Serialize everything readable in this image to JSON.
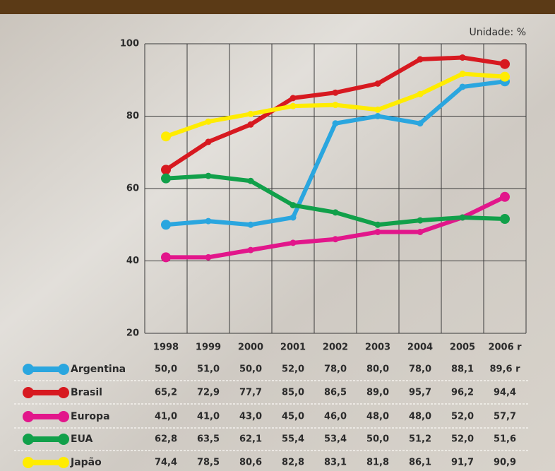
{
  "chart_data": {
    "type": "line",
    "unit_label": "Unidade: %",
    "categories": [
      "1998",
      "1999",
      "2000",
      "2001",
      "2002",
      "2003",
      "2004",
      "2005",
      "2006 r"
    ],
    "ylim": [
      20,
      100
    ],
    "yticks": [
      20,
      40,
      60,
      80,
      100
    ],
    "grid": true,
    "series": [
      {
        "name": "Argentina",
        "color": "#2aa6df",
        "values": [
          50.0,
          51.0,
          50.0,
          52.0,
          78.0,
          80.0,
          78.0,
          88.1,
          89.6
        ],
        "value_labels": [
          "50,0",
          "51,0",
          "50,0",
          "52,0",
          "78,0",
          "80,0",
          "78,0",
          "88,1",
          "89,6 r"
        ]
      },
      {
        "name": "Brasil",
        "color": "#d71920",
        "values": [
          65.2,
          72.9,
          77.7,
          85.0,
          86.5,
          89.0,
          95.7,
          96.2,
          94.4
        ],
        "value_labels": [
          "65,2",
          "72,9",
          "77,7",
          "85,0",
          "86,5",
          "89,0",
          "95,7",
          "96,2",
          "94,4"
        ]
      },
      {
        "name": "Europa",
        "color": "#e2168b",
        "values": [
          41.0,
          41.0,
          43.0,
          45.0,
          46.0,
          48.0,
          48.0,
          52.0,
          57.7
        ],
        "value_labels": [
          "41,0",
          "41,0",
          "43,0",
          "45,0",
          "46,0",
          "48,0",
          "48,0",
          "52,0",
          "57,7"
        ]
      },
      {
        "name": "EUA",
        "color": "#11a04a",
        "values": [
          62.8,
          63.5,
          62.1,
          55.4,
          53.4,
          50.0,
          51.2,
          52.0,
          51.6
        ],
        "value_labels": [
          "62,8",
          "63,5",
          "62,1",
          "55,4",
          "53,4",
          "50,0",
          "51,2",
          "52,0",
          "51,6"
        ]
      },
      {
        "name": "Japão",
        "color": "#ffec00",
        "values": [
          74.4,
          78.5,
          80.6,
          82.8,
          83.1,
          81.8,
          86.1,
          91.7,
          90.9
        ],
        "value_labels": [
          "74,4",
          "78,5",
          "80,6",
          "82,8",
          "83,1",
          "81,8",
          "86,1",
          "91,7",
          "90,9"
        ]
      }
    ]
  }
}
